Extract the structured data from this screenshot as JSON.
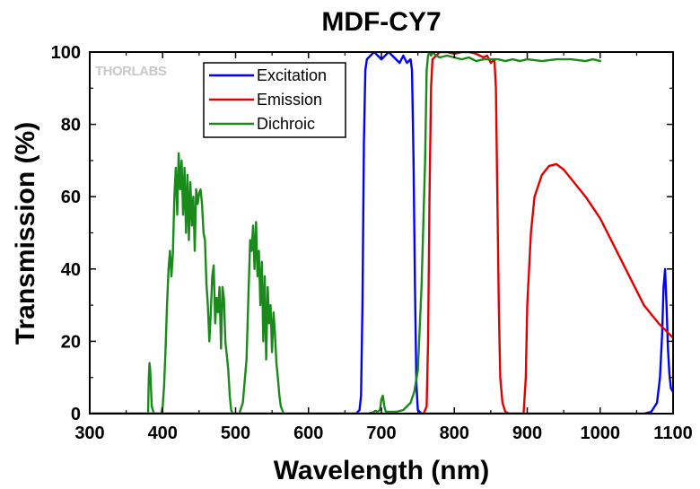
{
  "chart_data": {
    "type": "line",
    "title": "MDF-CY7",
    "xlabel": "Wavelength (nm)",
    "ylabel": "Transmission (%)",
    "xlim": [
      300,
      1100
    ],
    "ylim": [
      0,
      100
    ],
    "xticks": [
      300,
      400,
      500,
      600,
      700,
      800,
      900,
      1000,
      1100
    ],
    "yticks": [
      0,
      20,
      40,
      60,
      80,
      100
    ],
    "watermark": "THORLABS",
    "legend_position": "top-left inside, right of watermark",
    "grid": false,
    "series": [
      {
        "name": "Excitation",
        "color": "#0000ff",
        "x": [
          300,
          665,
          670,
          672,
          674,
          676,
          678,
          680,
          685,
          690,
          695,
          700,
          705,
          710,
          715,
          720,
          725,
          730,
          735,
          740,
          742,
          744,
          746,
          748,
          750,
          755,
          1060,
          1070,
          1078,
          1082,
          1085,
          1087,
          1089,
          1091,
          1093,
          1095,
          1097,
          1100
        ],
        "y": [
          0,
          0,
          1,
          5,
          30,
          75,
          95,
          98,
          99,
          100,
          99,
          98,
          99,
          100,
          99,
          98,
          97,
          99,
          97,
          98,
          95,
          70,
          35,
          8,
          1,
          0,
          0,
          0.5,
          3,
          10,
          22,
          35,
          40,
          30,
          18,
          11,
          7,
          6
        ]
      },
      {
        "name": "Emission",
        "color": "#e00000",
        "x": [
          300,
          758,
          762,
          764,
          766,
          768,
          770,
          775,
          780,
          790,
          800,
          810,
          820,
          830,
          840,
          845,
          850,
          855,
          857,
          859,
          861,
          863,
          866,
          870,
          875,
          895,
          898,
          900,
          905,
          910,
          920,
          930,
          940,
          950,
          960,
          980,
          1000,
          1020,
          1040,
          1060,
          1080,
          1100
        ],
        "y": [
          0,
          0,
          2,
          20,
          60,
          90,
          98,
          99,
          100,
          100,
          99.5,
          100,
          100,
          99.5,
          98.5,
          99,
          97,
          98,
          90,
          60,
          30,
          10,
          3,
          0.5,
          0,
          0,
          10,
          30,
          50,
          60,
          66,
          68.5,
          69,
          67.5,
          65,
          60,
          54,
          46,
          38,
          30,
          25,
          21
        ]
      },
      {
        "name": "Dichroic",
        "color": "#1a8a1a",
        "x": [
          300,
          380,
          381,
          382,
          383,
          385,
          388,
          398,
          400,
          402,
          404,
          406,
          408,
          410,
          412,
          414,
          416,
          418,
          420,
          422,
          424,
          426,
          428,
          430,
          432,
          434,
          436,
          438,
          440,
          442,
          444,
          446,
          448,
          450,
          452,
          454,
          456,
          458,
          460,
          462,
          464,
          466,
          468,
          470,
          472,
          474,
          476,
          478,
          480,
          482,
          484,
          486,
          488,
          490,
          492,
          494,
          496,
          498,
          500,
          505,
          510,
          515,
          518,
          520,
          522,
          524,
          526,
          528,
          530,
          532,
          534,
          536,
          538,
          540,
          542,
          544,
          546,
          548,
          550,
          552,
          554,
          556,
          558,
          560,
          562,
          564,
          566,
          568,
          570,
          575,
          580,
          600,
          650,
          680,
          688,
          692,
          695,
          698,
          700,
          702,
          704,
          706,
          710,
          720,
          730,
          740,
          745,
          750,
          755,
          760,
          762,
          764,
          766,
          768,
          770,
          775,
          780,
          790,
          800,
          810,
          820,
          830,
          840,
          850,
          860,
          870,
          880,
          890,
          900,
          920,
          940,
          960,
          980,
          990,
          1000
        ],
        "y": [
          0,
          0,
          10,
          14,
          12,
          2,
          0,
          0,
          2,
          8,
          18,
          30,
          40,
          45,
          38,
          44,
          60,
          68,
          55,
          72,
          62,
          70,
          55,
          68,
          50,
          66,
          48,
          64,
          52,
          60,
          45,
          62,
          58,
          61,
          62,
          58,
          50,
          48,
          36,
          30,
          20,
          28,
          38,
          41,
          25,
          32,
          28,
          35,
          18,
          35,
          32,
          20,
          16,
          12,
          5,
          1,
          0,
          0,
          0,
          0,
          3,
          15,
          35,
          48,
          45,
          52,
          40,
          53,
          38,
          45,
          30,
          42,
          20,
          38,
          15,
          35,
          25,
          30,
          17,
          28,
          22,
          14,
          10,
          5,
          2,
          1,
          0,
          0,
          0,
          0,
          0,
          0,
          0,
          0,
          0.3,
          0.8,
          0.5,
          1,
          4,
          5,
          2,
          0.5,
          0.5,
          0.5,
          1,
          3,
          6,
          12,
          35,
          70,
          95,
          99,
          100,
          99,
          100,
          99,
          98.5,
          99,
          98.5,
          98,
          98.5,
          97.5,
          98,
          98,
          98,
          97.5,
          98,
          97.5,
          98,
          97.5,
          98,
          98,
          97.5,
          98,
          97.5
        ]
      }
    ]
  }
}
